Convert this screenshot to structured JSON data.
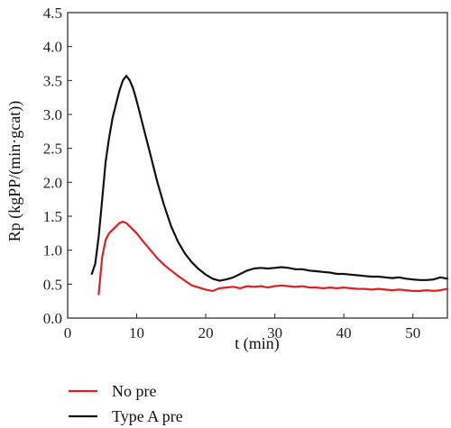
{
  "chart_data": {
    "type": "line",
    "xlabel": "t (min)",
    "ylabel": "Rp (kgPP/(min·gcat))",
    "xlim": [
      0,
      55
    ],
    "ylim": [
      0,
      4.5
    ],
    "x_ticks": [
      0,
      10,
      20,
      30,
      40,
      50
    ],
    "y_ticks": [
      0.0,
      0.5,
      1.0,
      1.5,
      2.0,
      2.5,
      3.0,
      3.5,
      4.0,
      4.5
    ],
    "x_tick_labels": [
      "0",
      "10",
      "20",
      "30",
      "40",
      "50"
    ],
    "y_tick_labels": [
      "0.0",
      "0.5",
      "1.0",
      "1.5",
      "2.0",
      "2.5",
      "3.0",
      "3.5",
      "4.0",
      "4.5"
    ],
    "grid": false,
    "legend_position": "bottom-left",
    "series": [
      {
        "name": "No pre",
        "color": "#e02020",
        "points": [
          [
            4.5,
            0.35
          ],
          [
            5.0,
            0.9
          ],
          [
            5.5,
            1.15
          ],
          [
            6.0,
            1.25
          ],
          [
            6.5,
            1.3
          ],
          [
            7.0,
            1.35
          ],
          [
            7.5,
            1.4
          ],
          [
            8.0,
            1.42
          ],
          [
            8.5,
            1.4
          ],
          [
            9.0,
            1.35
          ],
          [
            10.0,
            1.25
          ],
          [
            11.0,
            1.12
          ],
          [
            12.0,
            1.0
          ],
          [
            13.0,
            0.88
          ],
          [
            14.0,
            0.78
          ],
          [
            15.0,
            0.7
          ],
          [
            16.0,
            0.62
          ],
          [
            17.0,
            0.55
          ],
          [
            18.0,
            0.48
          ],
          [
            19.0,
            0.45
          ],
          [
            20.0,
            0.42
          ],
          [
            21.0,
            0.4
          ],
          [
            22.0,
            0.44
          ],
          [
            23.0,
            0.45
          ],
          [
            24.0,
            0.46
          ],
          [
            25.0,
            0.44
          ],
          [
            26.0,
            0.47
          ],
          [
            27.0,
            0.46
          ],
          [
            28.0,
            0.47
          ],
          [
            29.0,
            0.45
          ],
          [
            30.0,
            0.47
          ],
          [
            31.0,
            0.48
          ],
          [
            32.0,
            0.47
          ],
          [
            33.0,
            0.46
          ],
          [
            34.0,
            0.47
          ],
          [
            35.0,
            0.45
          ],
          [
            36.0,
            0.45
          ],
          [
            37.0,
            0.44
          ],
          [
            38.0,
            0.45
          ],
          [
            39.0,
            0.44
          ],
          [
            40.0,
            0.45
          ],
          [
            41.0,
            0.44
          ],
          [
            42.0,
            0.43
          ],
          [
            43.0,
            0.43
          ],
          [
            44.0,
            0.42
          ],
          [
            45.0,
            0.43
          ],
          [
            46.0,
            0.42
          ],
          [
            47.0,
            0.41
          ],
          [
            48.0,
            0.42
          ],
          [
            49.0,
            0.41
          ],
          [
            50.0,
            0.4
          ],
          [
            51.0,
            0.4
          ],
          [
            52.0,
            0.41
          ],
          [
            53.0,
            0.4
          ],
          [
            54.0,
            0.41
          ],
          [
            55.0,
            0.43
          ]
        ]
      },
      {
        "name": "Type A pre",
        "color": "#111111",
        "points": [
          [
            3.5,
            0.65
          ],
          [
            4.0,
            0.8
          ],
          [
            4.5,
            1.2
          ],
          [
            5.0,
            1.75
          ],
          [
            5.5,
            2.3
          ],
          [
            6.0,
            2.65
          ],
          [
            6.5,
            2.95
          ],
          [
            7.0,
            3.15
          ],
          [
            7.5,
            3.35
          ],
          [
            8.0,
            3.5
          ],
          [
            8.5,
            3.57
          ],
          [
            9.0,
            3.5
          ],
          [
            9.5,
            3.38
          ],
          [
            10.0,
            3.2
          ],
          [
            10.5,
            3.0
          ],
          [
            11.0,
            2.8
          ],
          [
            12.0,
            2.4
          ],
          [
            13.0,
            2.0
          ],
          [
            14.0,
            1.65
          ],
          [
            15.0,
            1.35
          ],
          [
            16.0,
            1.12
          ],
          [
            17.0,
            0.95
          ],
          [
            18.0,
            0.82
          ],
          [
            19.0,
            0.72
          ],
          [
            20.0,
            0.64
          ],
          [
            21.0,
            0.58
          ],
          [
            22.0,
            0.55
          ],
          [
            23.0,
            0.57
          ],
          [
            24.0,
            0.6
          ],
          [
            25.0,
            0.65
          ],
          [
            26.0,
            0.7
          ],
          [
            27.0,
            0.73
          ],
          [
            28.0,
            0.74
          ],
          [
            29.0,
            0.73
          ],
          [
            30.0,
            0.74
          ],
          [
            31.0,
            0.75
          ],
          [
            32.0,
            0.74
          ],
          [
            33.0,
            0.72
          ],
          [
            34.0,
            0.72
          ],
          [
            35.0,
            0.7
          ],
          [
            36.0,
            0.69
          ],
          [
            37.0,
            0.68
          ],
          [
            38.0,
            0.67
          ],
          [
            39.0,
            0.65
          ],
          [
            40.0,
            0.65
          ],
          [
            41.0,
            0.64
          ],
          [
            42.0,
            0.63
          ],
          [
            43.0,
            0.62
          ],
          [
            44.0,
            0.61
          ],
          [
            45.0,
            0.61
          ],
          [
            46.0,
            0.6
          ],
          [
            47.0,
            0.59
          ],
          [
            48.0,
            0.6
          ],
          [
            49.0,
            0.58
          ],
          [
            50.0,
            0.57
          ],
          [
            51.0,
            0.56
          ],
          [
            52.0,
            0.56
          ],
          [
            53.0,
            0.57
          ],
          [
            54.0,
            0.6
          ],
          [
            55.0,
            0.58
          ]
        ]
      }
    ]
  }
}
